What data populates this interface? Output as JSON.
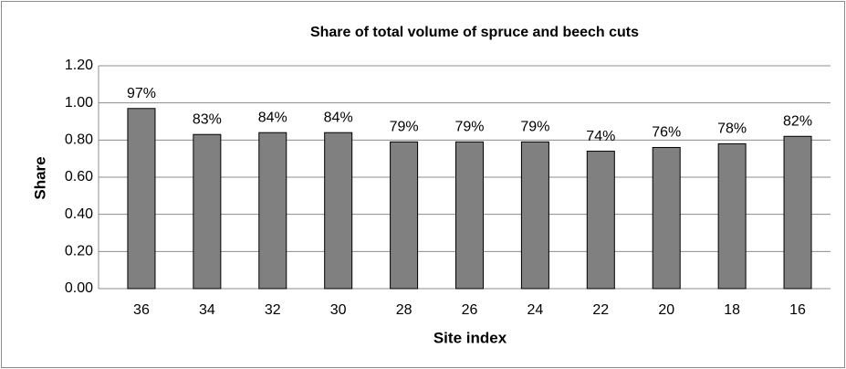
{
  "chart_data": {
    "type": "bar",
    "title": "Share of total volume of spruce and beech cuts",
    "x_label": "Site index",
    "y_label": "Share",
    "categories": [
      "36",
      "34",
      "32",
      "30",
      "28",
      "26",
      "24",
      "22",
      "20",
      "18",
      "16"
    ],
    "values": [
      0.97,
      0.83,
      0.84,
      0.84,
      0.79,
      0.79,
      0.79,
      0.74,
      0.76,
      0.78,
      0.82
    ],
    "value_labels": [
      "97%",
      "83%",
      "84%",
      "84%",
      "79%",
      "79%",
      "79%",
      "74%",
      "76%",
      "78%",
      "82%"
    ],
    "color": "#808080",
    "ylim": [
      0,
      1.2
    ],
    "yticks": [
      {
        "value": 0,
        "label": "0.00"
      },
      {
        "value": 0.2,
        "label": "0.20"
      },
      {
        "value": 0.4,
        "label": "0.40"
      },
      {
        "value": 0.6,
        "label": "0.60"
      },
      {
        "value": 0.8,
        "label": "0.80"
      },
      {
        "value": 1.0,
        "label": "1.00"
      },
      {
        "value": 1.2,
        "label": "1.20"
      }
    ],
    "grid": true
  }
}
